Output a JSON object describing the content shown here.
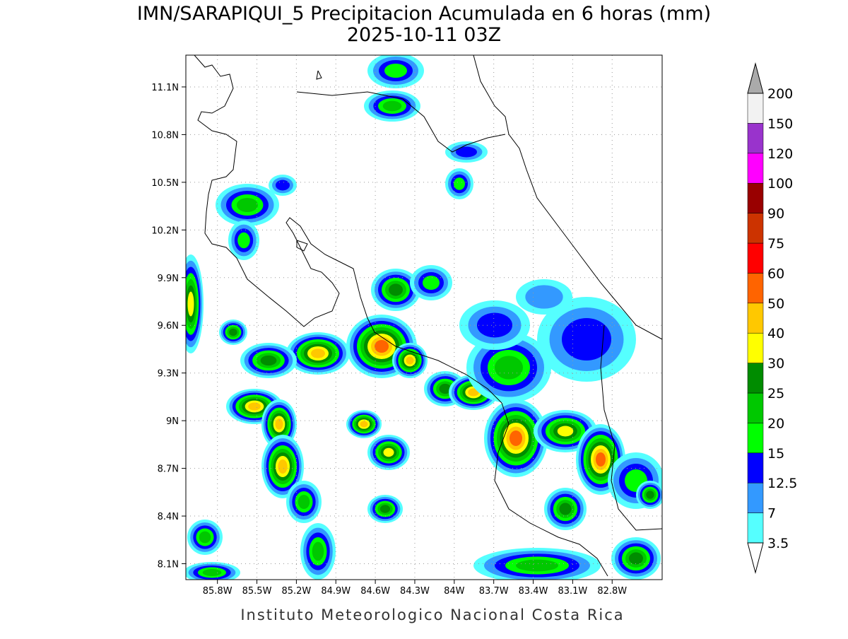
{
  "chart_data": {
    "type": "map",
    "title": "IMN/SARAPIQUI_5 Precipitacion Acumulada en 6 horas (mm)",
    "subtitle": "2025-10-11 03Z",
    "footer": "Instituto Meteorologico Nacional Costa Rica",
    "xlim": [
      -86.04,
      -82.42
    ],
    "ylim": [
      8.0,
      11.3
    ],
    "grid": true,
    "xticks": [
      {
        "value": -85.8,
        "label": "85.8W"
      },
      {
        "value": -85.5,
        "label": "85.5W"
      },
      {
        "value": -85.2,
        "label": "85.2W"
      },
      {
        "value": -84.9,
        "label": "84.9W"
      },
      {
        "value": -84.6,
        "label": "84.6W"
      },
      {
        "value": -84.3,
        "label": "84.3W"
      },
      {
        "value": -84.0,
        "label": "84W"
      },
      {
        "value": -83.7,
        "label": "83.7W"
      },
      {
        "value": -83.4,
        "label": "83.4W"
      },
      {
        "value": -83.1,
        "label": "83.1W"
      },
      {
        "value": -82.8,
        "label": "82.8W"
      }
    ],
    "yticks": [
      {
        "value": 8.1,
        "label": "8.1N"
      },
      {
        "value": 8.4,
        "label": "8.4N"
      },
      {
        "value": 8.7,
        "label": "8.7N"
      },
      {
        "value": 9.0,
        "label": "9N"
      },
      {
        "value": 9.3,
        "label": "9.3N"
      },
      {
        "value": 9.6,
        "label": "9.6N"
      },
      {
        "value": 9.9,
        "label": "9.9N"
      },
      {
        "value": 10.2,
        "label": "10.2N"
      },
      {
        "value": 10.5,
        "label": "10.5N"
      },
      {
        "value": 10.8,
        "label": "10.8N"
      },
      {
        "value": 11.1,
        "label": "11.1N"
      }
    ],
    "colorbar": {
      "levels": [
        3.5,
        7,
        12.5,
        15,
        20,
        25,
        30,
        40,
        50,
        60,
        75,
        90,
        100,
        120,
        150,
        200
      ],
      "colors": [
        "#55ffff",
        "#3399ff",
        "#0000ff",
        "#00ff00",
        "#00c800",
        "#008c00",
        "#ffff00",
        "#ffc800",
        "#ff6400",
        "#ff0000",
        "#cc3300",
        "#990000",
        "#ff00ff",
        "#9933cc",
        "#f2f2f2"
      ],
      "under_color": "#ffffff",
      "over_color": "#aaaaaa"
    }
  }
}
